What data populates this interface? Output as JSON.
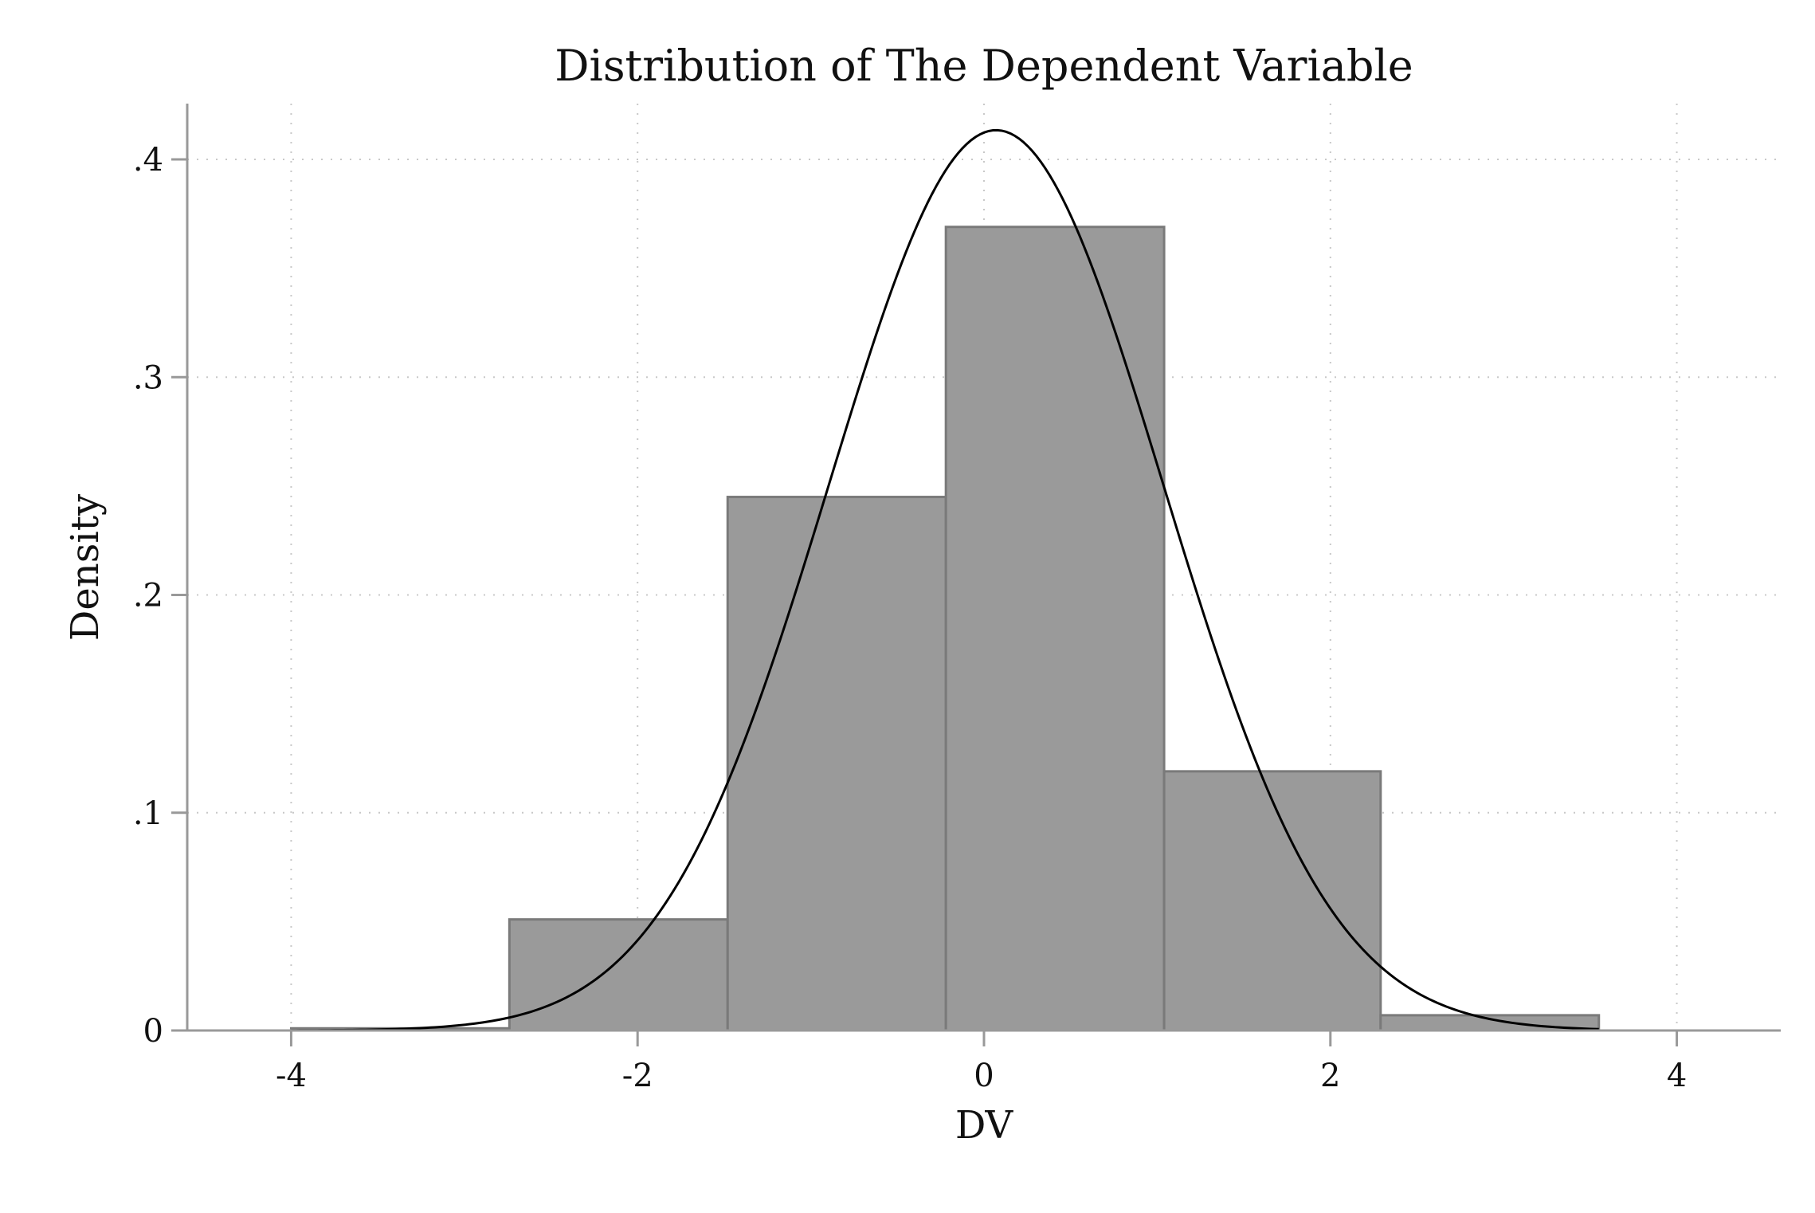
{
  "chart_data": {
    "type": "histogram",
    "title": "Distribution of The Dependent Variable",
    "xlabel": "DV",
    "ylabel": "Density",
    "xlim": [
      -4.6,
      4.6
    ],
    "ylim": [
      0,
      0.42
    ],
    "x_ticks": [
      -4,
      -2,
      0,
      2,
      4
    ],
    "x_tick_labels": [
      "-4",
      "-2",
      "0",
      "2",
      "4"
    ],
    "y_ticks": [
      0,
      0.1,
      0.2,
      0.3,
      0.4
    ],
    "y_tick_labels": [
      "0",
      ".1",
      ".2",
      ".3",
      ".4"
    ],
    "grid": true,
    "legend": "none",
    "series": [
      {
        "type": "bar",
        "bins": [
          {
            "x0": -4.0,
            "x1": -2.74,
            "value": 0.001
          },
          {
            "x0": -2.74,
            "x1": -1.48,
            "value": 0.051
          },
          {
            "x0": -1.48,
            "x1": -0.22,
            "value": 0.245
          },
          {
            "x0": -0.22,
            "x1": 1.04,
            "value": 0.369
          },
          {
            "x0": 1.04,
            "x1": 2.29,
            "value": 0.119
          },
          {
            "x0": 2.29,
            "x1": 3.55,
            "value": 0.007
          }
        ]
      },
      {
        "type": "line",
        "distribution": "normal",
        "mean": 0.07,
        "sd": 0.965,
        "x_range": [
          -4.0,
          3.55
        ]
      }
    ],
    "colors": {
      "bar_fill": "#9a9a9a",
      "bar_stroke": "#7a7a7a",
      "curve": "#000000",
      "axis": "#999999",
      "grid": "#c8c8c8",
      "text": "#111111"
    }
  }
}
